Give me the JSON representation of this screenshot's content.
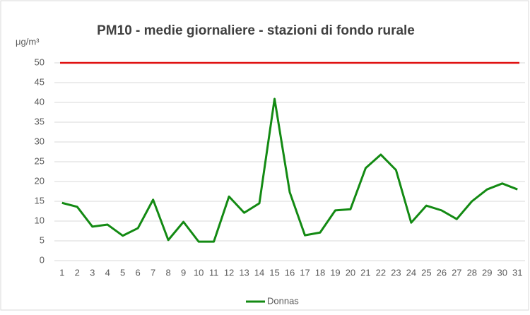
{
  "chart_data": {
    "type": "line",
    "title": "PM10 - medie giornaliere - stazioni di fondo rurale",
    "y_axis_label": "μg/m³",
    "categories": [
      1,
      2,
      3,
      4,
      5,
      6,
      7,
      8,
      9,
      10,
      11,
      12,
      13,
      14,
      15,
      16,
      17,
      18,
      19,
      20,
      21,
      22,
      23,
      24,
      25,
      26,
      27,
      28,
      29,
      30,
      31
    ],
    "series": [
      {
        "name": "Donnas",
        "color": "#138a13",
        "values": [
          14.6,
          13.6,
          8.6,
          9.1,
          6.3,
          8.2,
          15.4,
          5.2,
          9.8,
          4.8,
          4.8,
          16.2,
          12.1,
          14.5,
          40.9,
          17.3,
          6.4,
          7.1,
          12.7,
          13.0,
          23.4,
          26.8,
          22.9,
          9.6,
          13.9,
          12.7,
          10.5,
          15.0,
          18.0,
          19.5,
          18.0
        ]
      }
    ],
    "reference_line": {
      "value": 50,
      "color": "#e01010"
    },
    "ylim": [
      0,
      50
    ],
    "yticks": [
      0,
      5,
      10,
      15,
      20,
      25,
      30,
      35,
      40,
      45,
      50
    ],
    "grid": true,
    "legend": "bottom"
  }
}
